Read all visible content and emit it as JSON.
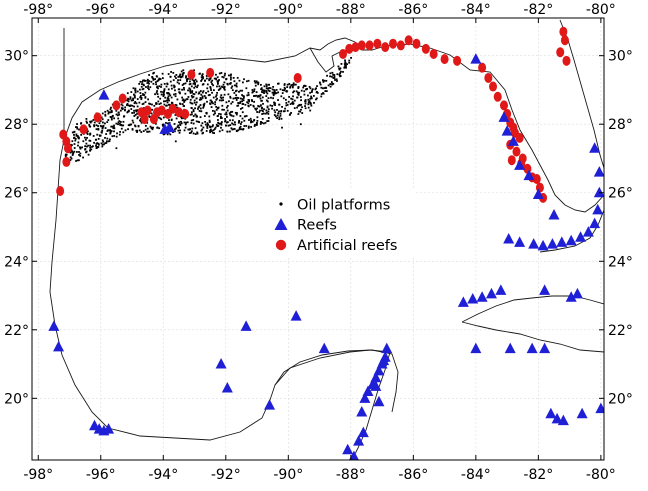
{
  "map": {
    "lon_range": [
      -98.2,
      -79.9
    ],
    "lat_range": [
      18.2,
      31.1
    ],
    "lon_ticks": [
      {
        "value": -98,
        "label": "-98°"
      },
      {
        "value": -96,
        "label": "-96°"
      },
      {
        "value": -94,
        "label": "-94°"
      },
      {
        "value": -92,
        "label": "-92°"
      },
      {
        "value": -90,
        "label": "-90°"
      },
      {
        "value": -88,
        "label": "-88°"
      },
      {
        "value": -86,
        "label": "-86°"
      },
      {
        "value": -84,
        "label": "-84°"
      },
      {
        "value": -82,
        "label": "-82°"
      },
      {
        "value": -80,
        "label": "-80°"
      }
    ],
    "lat_ticks": [
      {
        "value": 20,
        "label": "20°"
      },
      {
        "value": 22,
        "label": "22°"
      },
      {
        "value": 24,
        "label": "24°"
      },
      {
        "value": 26,
        "label": "26°"
      },
      {
        "value": 28,
        "label": "28°"
      },
      {
        "value": 30,
        "label": "30°"
      }
    ],
    "grid": true,
    "colors": {
      "oil": "#000000",
      "reef": "#1f1fd6",
      "artificial": "#e01818",
      "coast": "#1a1a1a",
      "grid": "#dddddd"
    }
  },
  "legend": {
    "items": [
      {
        "key": "oil",
        "label": "Oil platforms",
        "marker": "small-dot"
      },
      {
        "key": "reef",
        "label": "Reefs",
        "marker": "triangle"
      },
      {
        "key": "artificial",
        "label": "Artificial reefs",
        "marker": "circle"
      }
    ]
  },
  "oil_platform_region": [
    [
      -97.2,
      27.0
    ],
    [
      -96.8,
      28.0
    ],
    [
      -95.6,
      28.6
    ],
    [
      -94.4,
      29.5
    ],
    [
      -93.2,
      29.6
    ],
    [
      -92.0,
      29.5
    ],
    [
      -90.8,
      29.2
    ],
    [
      -89.8,
      29.2
    ],
    [
      -89.2,
      29.1
    ],
    [
      -88.3,
      29.8
    ],
    [
      -87.8,
      30.1
    ],
    [
      -88.4,
      29.3
    ],
    [
      -89.5,
      28.3
    ],
    [
      -90.5,
      28.1
    ],
    [
      -91.6,
      27.8
    ],
    [
      -92.8,
      27.7
    ],
    [
      -94.0,
      27.7
    ],
    [
      -95.2,
      27.8
    ],
    [
      -96.2,
      27.2
    ],
    [
      -96.8,
      26.9
    ]
  ],
  "reefs": [
    [
      -95.9,
      28.85
    ],
    [
      -93.8,
      27.9
    ],
    [
      -93.95,
      27.85
    ],
    [
      -97.5,
      22.1
    ],
    [
      -97.35,
      21.5
    ],
    [
      -96.2,
      19.2
    ],
    [
      -96.05,
      19.1
    ],
    [
      -95.9,
      19.05
    ],
    [
      -95.75,
      19.1
    ],
    [
      -92.15,
      21.0
    ],
    [
      -91.95,
      20.3
    ],
    [
      -91.35,
      22.1
    ],
    [
      -89.75,
      22.4
    ],
    [
      -90.6,
      19.8
    ],
    [
      -88.85,
      21.45
    ],
    [
      -88.1,
      18.5
    ],
    [
      -87.9,
      18.3
    ],
    [
      -87.75,
      18.75
    ],
    [
      -87.6,
      19.0
    ],
    [
      -87.65,
      19.6
    ],
    [
      -87.55,
      20.0
    ],
    [
      -87.45,
      20.2
    ],
    [
      -87.3,
      20.4
    ],
    [
      -87.2,
      20.6
    ],
    [
      -87.1,
      20.8
    ],
    [
      -87.0,
      21.0
    ],
    [
      -86.9,
      21.2
    ],
    [
      -86.85,
      21.45
    ],
    [
      -86.95,
      21.1
    ],
    [
      -87.2,
      20.35
    ],
    [
      -87.1,
      19.9
    ],
    [
      -84.0,
      29.9
    ],
    [
      -83.1,
      28.2
    ],
    [
      -83.0,
      27.8
    ],
    [
      -82.8,
      27.5
    ],
    [
      -82.6,
      26.8
    ],
    [
      -82.3,
      26.5
    ],
    [
      -82.0,
      25.95
    ],
    [
      -81.5,
      25.35
    ],
    [
      -80.2,
      27.3
    ],
    [
      -80.05,
      26.6
    ],
    [
      -80.05,
      26.0
    ],
    [
      -80.1,
      25.5
    ],
    [
      -80.2,
      25.1
    ],
    [
      -80.4,
      24.85
    ],
    [
      -80.65,
      24.7
    ],
    [
      -80.95,
      24.6
    ],
    [
      -81.25,
      24.55
    ],
    [
      -81.55,
      24.5
    ],
    [
      -81.85,
      24.45
    ],
    [
      -82.15,
      24.5
    ],
    [
      -82.6,
      24.55
    ],
    [
      -82.95,
      24.65
    ],
    [
      -84.4,
      22.8
    ],
    [
      -84.1,
      22.9
    ],
    [
      -83.8,
      22.95
    ],
    [
      -83.5,
      23.05
    ],
    [
      -83.2,
      23.15
    ],
    [
      -81.8,
      23.15
    ],
    [
      -80.75,
      23.05
    ],
    [
      -80.95,
      22.95
    ],
    [
      -84.0,
      21.45
    ],
    [
      -82.9,
      21.45
    ],
    [
      -82.2,
      21.45
    ],
    [
      -81.8,
      21.45
    ],
    [
      -81.6,
      19.55
    ],
    [
      -81.4,
      19.4
    ],
    [
      -81.2,
      19.35
    ],
    [
      -80.6,
      19.55
    ],
    [
      -80.0,
      19.7
    ]
  ],
  "artificial_reefs": [
    [
      -97.2,
      27.7
    ],
    [
      -97.1,
      27.5
    ],
    [
      -97.05,
      27.3
    ],
    [
      -97.1,
      26.9
    ],
    [
      -97.3,
      26.05
    ],
    [
      -96.55,
      27.85
    ],
    [
      -96.1,
      28.2
    ],
    [
      -95.5,
      28.55
    ],
    [
      -95.3,
      28.75
    ],
    [
      -94.7,
      28.35
    ],
    [
      -94.5,
      28.4
    ],
    [
      -94.2,
      28.35
    ],
    [
      -94.05,
      28.4
    ],
    [
      -93.85,
      28.3
    ],
    [
      -93.7,
      28.45
    ],
    [
      -93.5,
      28.35
    ],
    [
      -93.3,
      28.3
    ],
    [
      -94.3,
      28.15
    ],
    [
      -94.6,
      28.15
    ],
    [
      -93.1,
      29.45
    ],
    [
      -92.5,
      29.5
    ],
    [
      -89.7,
      29.35
    ],
    [
      -88.25,
      30.05
    ],
    [
      -88.05,
      30.2
    ],
    [
      -87.85,
      30.25
    ],
    [
      -87.65,
      30.3
    ],
    [
      -87.4,
      30.3
    ],
    [
      -87.15,
      30.35
    ],
    [
      -86.9,
      30.25
    ],
    [
      -86.65,
      30.35
    ],
    [
      -86.4,
      30.3
    ],
    [
      -86.15,
      30.45
    ],
    [
      -85.9,
      30.35
    ],
    [
      -85.6,
      30.2
    ],
    [
      -85.35,
      30.05
    ],
    [
      -85.0,
      29.9
    ],
    [
      -84.6,
      29.85
    ],
    [
      -83.8,
      29.65
    ],
    [
      -83.6,
      29.35
    ],
    [
      -83.45,
      29.1
    ],
    [
      -83.3,
      28.8
    ],
    [
      -83.1,
      28.55
    ],
    [
      -83.0,
      28.3
    ],
    [
      -82.9,
      28.05
    ],
    [
      -82.75,
      27.75
    ],
    [
      -82.9,
      27.4
    ],
    [
      -82.7,
      27.2
    ],
    [
      -82.5,
      27.0
    ],
    [
      -82.35,
      26.7
    ],
    [
      -82.2,
      26.45
    ],
    [
      -81.95,
      26.15
    ],
    [
      -81.85,
      25.85
    ],
    [
      -82.05,
      26.4
    ],
    [
      -82.8,
      27.9
    ],
    [
      -82.6,
      27.6
    ],
    [
      -82.85,
      26.95
    ],
    [
      -82.55,
      26.85
    ],
    [
      -81.2,
      30.7
    ],
    [
      -81.15,
      30.45
    ],
    [
      -81.3,
      30.1
    ],
    [
      -81.1,
      29.85
    ]
  ]
}
